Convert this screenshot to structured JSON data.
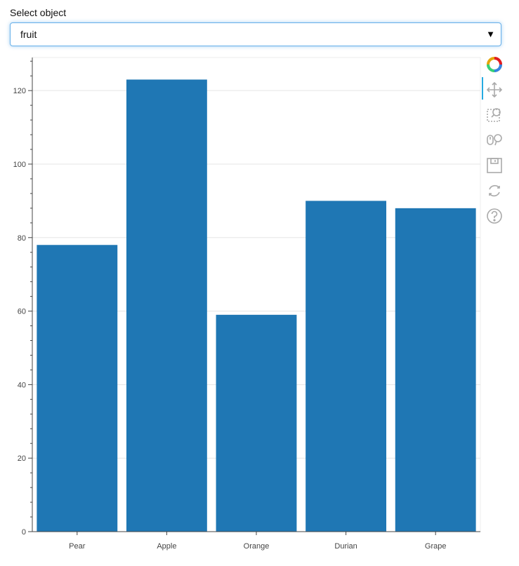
{
  "select": {
    "label": "Select object",
    "value": "fruit"
  },
  "toolbar": {
    "tools": [
      "bokeh-logo-icon",
      "pan-icon",
      "box-zoom-icon",
      "wheel-zoom-icon",
      "save-icon",
      "reset-icon",
      "help-icon"
    ]
  },
  "colors": {
    "bar": "#1f77b4",
    "axis": "#444444",
    "grid": "#e5e5e5"
  },
  "chart_data": {
    "type": "bar",
    "categories": [
      "Pear",
      "Apple",
      "Orange",
      "Durian",
      "Grape"
    ],
    "values": [
      78,
      123,
      59,
      90,
      88
    ],
    "ylim": [
      0,
      129
    ],
    "yticks": [
      0,
      20,
      40,
      60,
      80,
      100,
      120
    ],
    "grid": true,
    "title": "",
    "xlabel": "",
    "ylabel": ""
  }
}
